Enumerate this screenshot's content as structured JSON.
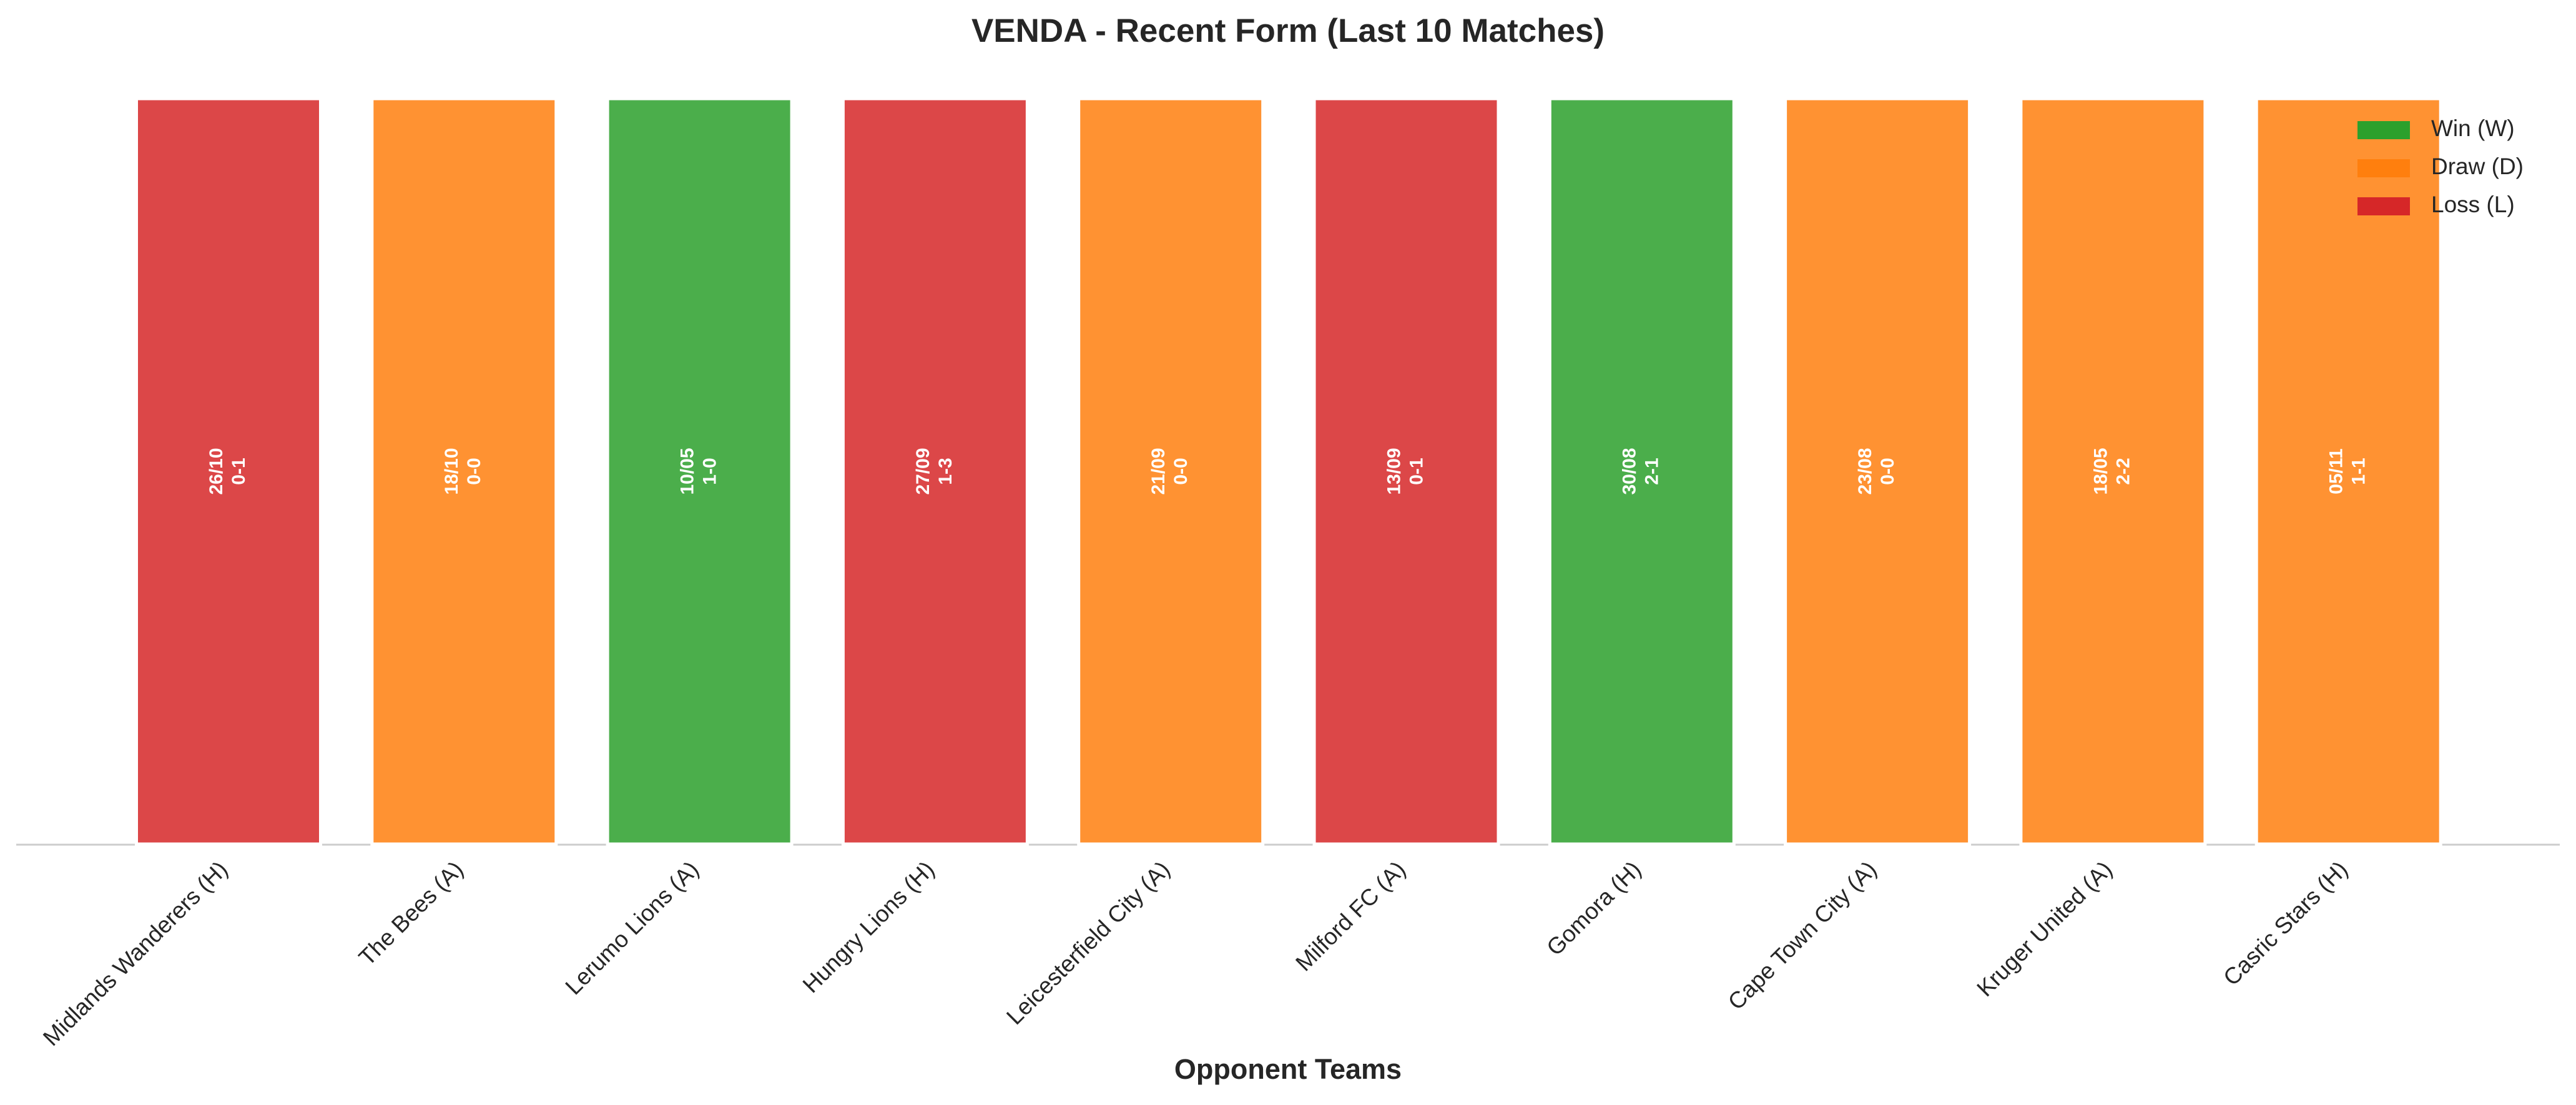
{
  "chart_data": {
    "type": "bar",
    "title": "VENDA - Recent Form (Last 10 Matches)",
    "x_label": "Opponent Teams",
    "categories": [
      "Midlands Wanderers (H)",
      "The Bees (A)",
      "Lerumo Lions (A)",
      "Hungry Lions (H)",
      "Leicesterfield City (A)",
      "Milford FC (A)",
      "Gomora (H)",
      "Cape Town City (A)",
      "Kruger United (A)",
      "Casric Stars (H)"
    ],
    "values": [
      1,
      1,
      1,
      1,
      1,
      1,
      1,
      1,
      1,
      1
    ],
    "colors": [
      "#d62728",
      "#ff7f0e",
      "#2ca02c",
      "#d62728",
      "#ff7f0e",
      "#d62728",
      "#2ca02c",
      "#ff7f0e",
      "#ff7f0e",
      "#ff7f0e"
    ],
    "bar_labels": [
      [
        "26/10",
        "0-1"
      ],
      [
        "18/10",
        "0-0"
      ],
      [
        "10/05",
        "1-0"
      ],
      [
        "27/09",
        "1-3"
      ],
      [
        "21/09",
        "0-0"
      ],
      [
        "13/09",
        "0-1"
      ],
      [
        "30/08",
        "2-1"
      ],
      [
        "23/08",
        "0-0"
      ],
      [
        "18/05",
        "2-2"
      ],
      [
        "05/11",
        "1-1"
      ]
    ],
    "ylim": [
      0,
      1
    ],
    "legend": {
      "loc": "upper right",
      "entries": [
        {
          "name": "Win (W)",
          "color": "#2ca02c"
        },
        {
          "name": "Draw (D)",
          "color": "#ff7f0e"
        },
        {
          "name": "Loss (L)",
          "color": "#d62728"
        }
      ]
    }
  }
}
